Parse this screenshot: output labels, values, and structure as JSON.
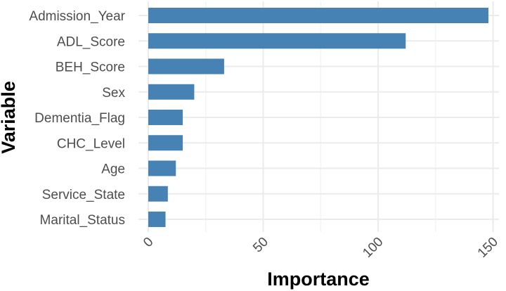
{
  "chart_data": {
    "type": "bar",
    "orientation": "horizontal",
    "categories": [
      "Admission_Year",
      "ADL_Score",
      "BEH_Score",
      "Sex",
      "Dementia_Flag",
      "CHC_Level",
      "Age",
      "Service_State",
      "Marital_Status"
    ],
    "values": [
      148,
      112,
      33,
      20,
      15,
      15,
      12,
      8.5,
      7.5
    ],
    "xlabel": "Importance",
    "ylabel": "Variable",
    "xlim": [
      0,
      150
    ],
    "xticks": [
      0,
      50,
      100,
      150
    ],
    "grid": true,
    "bar_color": "#4682b4"
  }
}
